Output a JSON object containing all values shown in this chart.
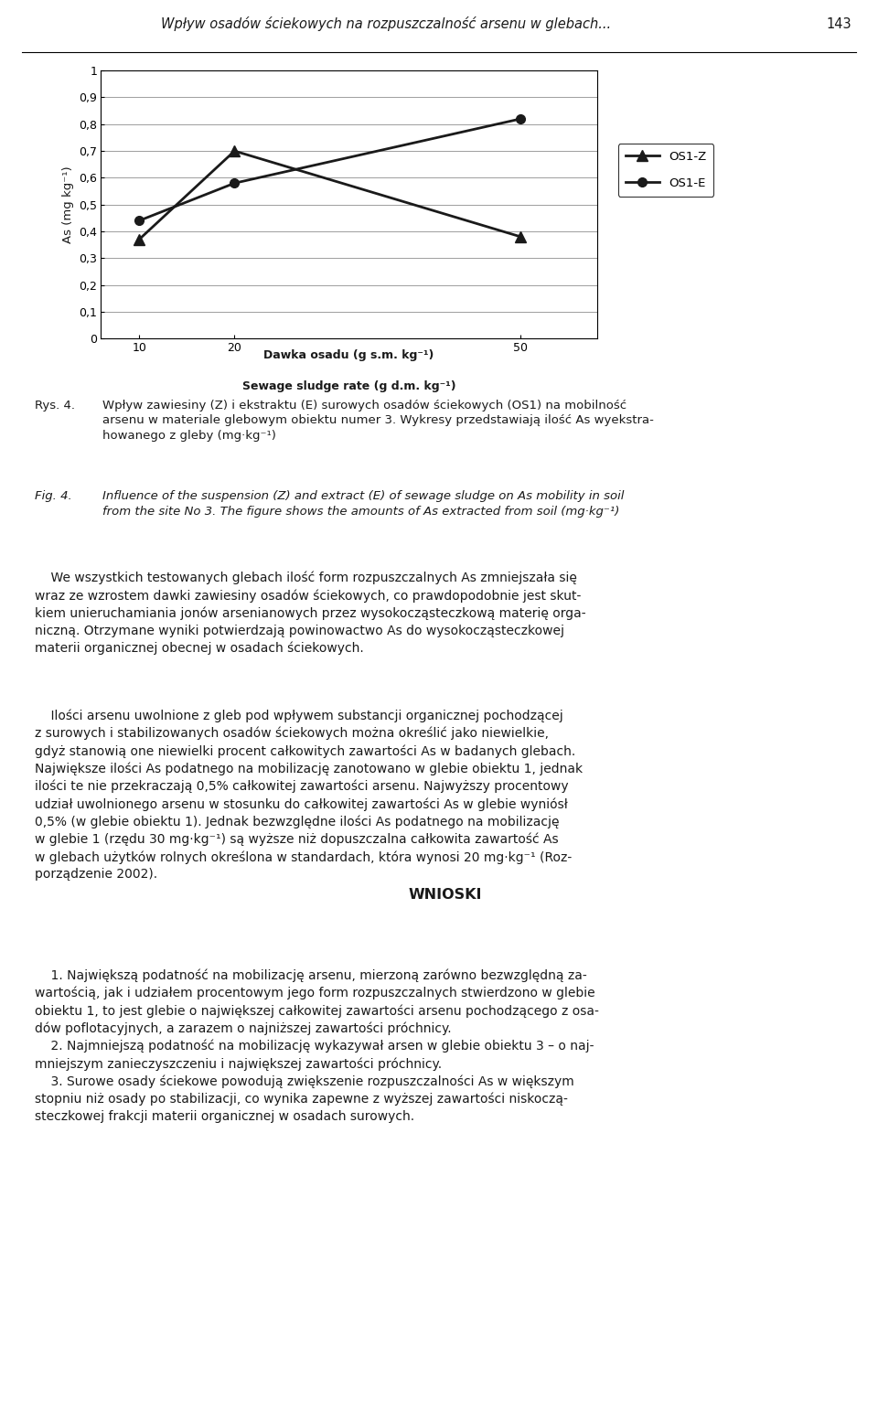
{
  "page_header": "Wpływ osadów ściekowych na rozpuszczalność arsenu w glebach...",
  "page_number": "143",
  "chart": {
    "x_values": [
      10,
      20,
      50
    ],
    "os1z_values": [
      0.37,
      0.7,
      0.38
    ],
    "os1e_values": [
      0.44,
      0.58,
      0.82
    ],
    "ylabel": "As (mg kg⁻¹)",
    "xlabel_line1": "Dawka osadu (g s.m. kg⁻¹)",
    "xlabel_line2": "Sewage sludge rate (g d.m. kg⁻¹)",
    "yticks": [
      0,
      0.1,
      0.2,
      0.3,
      0.4,
      0.5,
      0.6,
      0.7,
      0.8,
      0.9,
      1
    ],
    "xticks": [
      10,
      20,
      50
    ],
    "ylim": [
      0,
      1.0
    ],
    "legend_labels": [
      "OS1-Z",
      "OS1-E"
    ],
    "line_color": "#1a1a1a"
  },
  "background_color": "#ffffff",
  "text_color": "#1a1a1a"
}
